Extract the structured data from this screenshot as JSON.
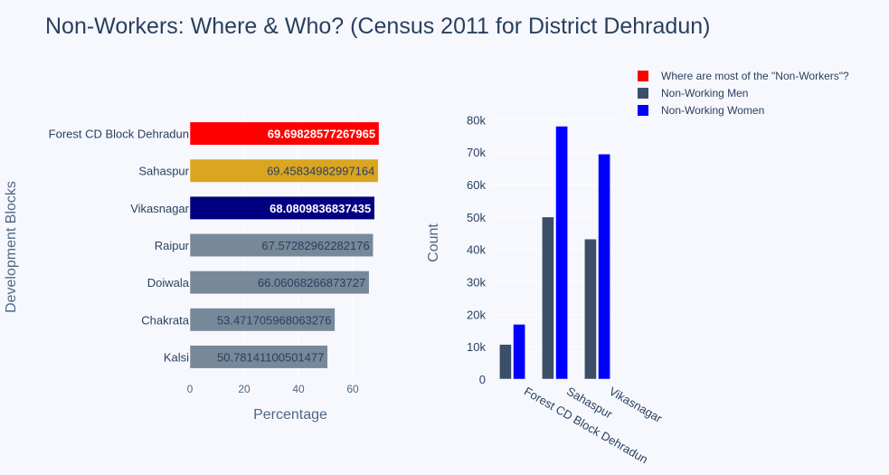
{
  "page": {
    "title": "Non-Workers: Where & Who? (Census 2011 for District Dehradun)"
  },
  "legend": {
    "placement": "top-right",
    "items": [
      {
        "label": "Where are most of the \"Non-Workers\"?",
        "color": "#ff0000"
      },
      {
        "label": "Non-Working Men",
        "color": "#3b5068"
      },
      {
        "label": "Non-Working Women",
        "color": "#0000ff"
      }
    ]
  },
  "chart_data": [
    {
      "type": "bar",
      "orientation": "horizontal",
      "title": "",
      "xlabel": "Percentage",
      "ylabel": "Development Blocks",
      "xlim": [
        0,
        74
      ],
      "xticks": [
        0,
        20,
        40,
        60
      ],
      "series": [
        {
          "name": "Where are most of the \"Non-Workers\"?",
          "categories": [
            "Forest CD Block Dehradun",
            "Sahaspur",
            "Vikasnagar",
            "Raipur",
            "Doiwala",
            "Chakrata",
            "Kalsi"
          ],
          "values": [
            69.69828577267965,
            69.45834982997164,
            68.0809836837435,
            67.57282962282176,
            66.06068266873727,
            53.471705968063276,
            50.78141100501477
          ],
          "labels": [
            "69.69828577267965",
            "69.45834982997164",
            "68.0809836837435",
            "67.57282962282176",
            "66.06068266873727",
            "53.471705968063276",
            "50.78141100501477"
          ],
          "colors": [
            "#ff0000",
            "#daa520",
            "#000080",
            "#778899",
            "#778899",
            "#778899",
            "#778899"
          ],
          "label_colors": [
            "#ffffff",
            "#2a3f5f",
            "#ffffff",
            "#2a3f5f",
            "#2a3f5f",
            "#2a3f5f",
            "#2a3f5f"
          ]
        }
      ],
      "grid": true
    },
    {
      "type": "bar",
      "orientation": "vertical",
      "title": "",
      "xlabel": "",
      "ylabel": "Count",
      "ylim": [
        0,
        84000
      ],
      "yticks": [
        0,
        10000,
        20000,
        30000,
        40000,
        50000,
        60000,
        70000,
        80000
      ],
      "ytick_labels": [
        "0",
        "10k",
        "20k",
        "30k",
        "40k",
        "50k",
        "60k",
        "70k",
        "80k"
      ],
      "categories": [
        "Forest CD Block Dehradun",
        "Sahaspur",
        "Vikasnagar"
      ],
      "series": [
        {
          "name": "Non-Working Men",
          "color": "#3b5068",
          "values": [
            10700,
            50000,
            43200
          ]
        },
        {
          "name": "Non-Working Women",
          "color": "#0000ff",
          "values": [
            16900,
            78000,
            69400
          ]
        }
      ],
      "grid": true
    }
  ]
}
